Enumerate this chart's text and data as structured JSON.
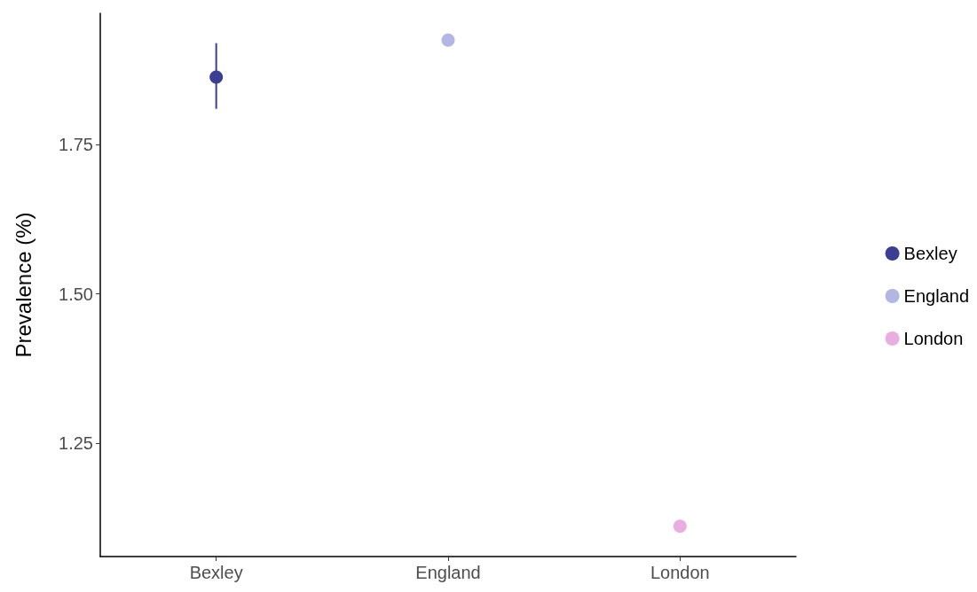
{
  "chart_data": {
    "type": "scatter",
    "ylabel": "Prevalence (%)",
    "categories": [
      "Bexley",
      "England",
      "London"
    ],
    "series": [
      {
        "name": "Bexley",
        "color": "#3b3f91",
        "x": [
          "Bexley"
        ],
        "values": [
          1.863
        ],
        "errors": [
          [
            1.81,
            1.92
          ]
        ]
      },
      {
        "name": "England",
        "color": "#b3b5e3",
        "x": [
          "England"
        ],
        "values": [
          1.925
        ]
      },
      {
        "name": "London",
        "color": "#e8aee0",
        "x": [
          "London"
        ],
        "values": [
          1.111
        ]
      }
    ],
    "ylim": [
      1.06,
      1.97
    ],
    "yticks": [
      1.25,
      {
        "value": 1.5,
        "label": "1.50"
      },
      1.75
    ],
    "grid": false,
    "legend": "right",
    "marker": "circle"
  }
}
